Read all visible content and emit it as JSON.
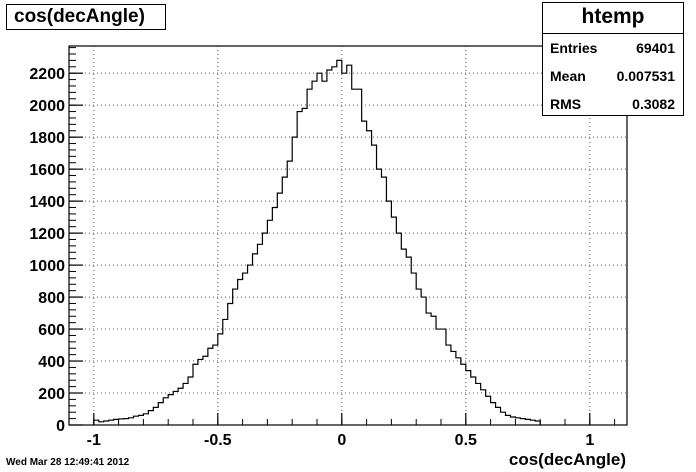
{
  "canvas": {
    "title": "cos(decAngle)",
    "timestamp": "Wed Mar 28 12:49:41 2012"
  },
  "stats": {
    "name": "htemp",
    "rows": [
      {
        "label": "Entries",
        "value": "69401"
      },
      {
        "label": "Mean",
        "value": "0.007531"
      },
      {
        "label": "RMS",
        "value": "0.3082"
      }
    ]
  },
  "chart_data": {
    "type": "bar",
    "title": "cos(decAngle)",
    "xlabel": "cos(decAngle)",
    "ylabel": "",
    "xlim": [
      -1.1,
      1.15
    ],
    "ylim": [
      0,
      2370
    ],
    "grid": true,
    "x_ticks": [
      -1,
      -0.5,
      0,
      0.5,
      1
    ],
    "x_tick_labels": [
      "-1",
      "-0.5",
      "0",
      "0.5",
      "1"
    ],
    "y_ticks": [
      0,
      200,
      400,
      600,
      800,
      1000,
      1200,
      1400,
      1600,
      1800,
      2000,
      2200
    ],
    "y_tick_labels": [
      "0",
      "200",
      "400",
      "600",
      "800",
      "1000",
      "1200",
      "1400",
      "1600",
      "1800",
      "2000",
      "2200"
    ],
    "bin_edges_start": -1.0,
    "bin_width": 0.02,
    "values": [
      30,
      20,
      25,
      30,
      35,
      38,
      40,
      45,
      55,
      60,
      70,
      90,
      110,
      140,
      170,
      190,
      210,
      230,
      260,
      300,
      380,
      410,
      430,
      480,
      500,
      570,
      660,
      760,
      850,
      910,
      950,
      1000,
      1070,
      1130,
      1200,
      1280,
      1360,
      1450,
      1550,
      1650,
      1800,
      1960,
      1980,
      2100,
      2150,
      2200,
      2150,
      2220,
      2240,
      2280,
      2200,
      2250,
      2100,
      2100,
      1900,
      1840,
      1750,
      1600,
      1550,
      1400,
      1300,
      1200,
      1100,
      1050,
      950,
      850,
      800,
      700,
      680,
      600,
      600,
      500,
      460,
      420,
      380,
      340,
      300,
      260,
      220,
      180,
      140,
      110,
      80,
      60,
      50,
      45,
      40,
      35,
      30,
      25
    ]
  }
}
